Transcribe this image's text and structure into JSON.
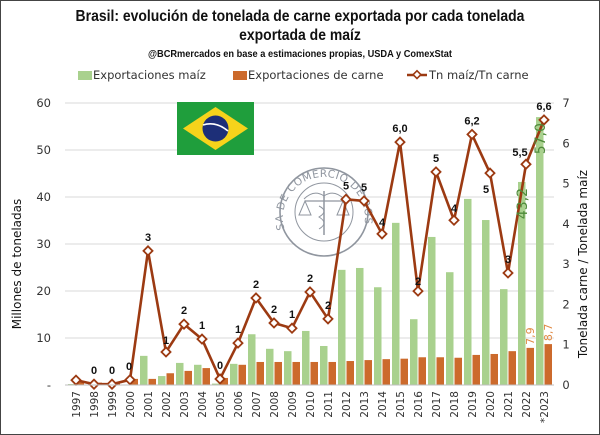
{
  "chart_data": {
    "type": "bar",
    "title": "Brasil: evolución de tonelada de carne exportada por cada tonelada exportada de maíz",
    "title_line1": "Brasil: evolución de tonelada de carne exportada por cada tonelada",
    "title_line2": "exportada de maíz",
    "subtitle": "@BCRmercados en base a estimaciones propias, USDA y ComexStat",
    "ylabel_left": "Millones de toneladas",
    "ylabel_right": "Tonelada carne / Tonelada maíz",
    "ylim_left": [
      0,
      60
    ],
    "ylim_right": [
      0,
      7
    ],
    "yticks_left": [
      "-",
      "10",
      "20",
      "30",
      "40",
      "50",
      "60"
    ],
    "yticks_right": [
      "0",
      "1",
      "2",
      "3",
      "4",
      "5",
      "6",
      "7"
    ],
    "grid": true,
    "legend_position": "top",
    "categories": [
      "1997",
      "1998",
      "1999",
      "2000",
      "2001",
      "2002",
      "2003",
      "2004",
      "2005",
      "2006",
      "2007",
      "2008",
      "2009",
      "2010",
      "2011",
      "2012",
      "2013",
      "2014",
      "2015",
      "2016",
      "2017",
      "2018",
      "2019",
      "2020",
      "2021",
      "2022",
      "*2023"
    ],
    "series": [
      {
        "name": "Exportaciones maíz",
        "type": "bar",
        "axis": "left",
        "color": "#a9d18e",
        "values": [
          0.2,
          0.1,
          0.1,
          0.1,
          6.2,
          1.9,
          4.7,
          4.3,
          0.3,
          4.5,
          10.8,
          7.7,
          7.2,
          11.5,
          8.3,
          24.5,
          24.9,
          20.8,
          34.5,
          14.0,
          31.5,
          24.0,
          39.6,
          35.1,
          20.4,
          43.2,
          57.0
        ],
        "data_labels": {
          "25": "43,2",
          "26": "57,0"
        }
      },
      {
        "name": "Exportaciones de carne",
        "type": "bar",
        "axis": "left",
        "color": "#cc6a2c",
        "values": [
          0.6,
          0.5,
          0.5,
          1.3,
          1.3,
          2.5,
          3.0,
          3.6,
          1.5,
          4.3,
          4.9,
          4.9,
          4.9,
          4.9,
          4.9,
          5.1,
          5.3,
          5.5,
          5.6,
          5.9,
          5.9,
          5.8,
          6.4,
          6.6,
          7.2,
          7.9,
          8.7
        ],
        "data_labels": {
          "25": "7,9",
          "26": "8,7"
        }
      },
      {
        "name": "Tn maíz/Tn carne",
        "type": "line",
        "axis": "right",
        "color": "#9c3a12",
        "values": [
          0.12,
          0.02,
          0.02,
          0.13,
          3.33,
          0.82,
          1.51,
          1.14,
          0.15,
          1.04,
          2.16,
          1.54,
          1.41,
          2.31,
          1.64,
          4.61,
          4.57,
          3.75,
          6.03,
          2.33,
          5.29,
          4.09,
          6.22,
          5.26,
          2.78,
          5.48,
          6.58
        ],
        "data_labels": [
          "",
          "0",
          "0",
          "0",
          "3",
          "1",
          "2",
          "1",
          "0",
          "1",
          "2",
          "2",
          "1",
          "2",
          "2",
          "5",
          "5",
          "4",
          "6,0",
          "2",
          "5",
          "4",
          "6,2",
          "5",
          "3",
          "5,5",
          "6,6"
        ]
      }
    ]
  },
  "decorations": {
    "flag": "brazil-flag",
    "watermark": "BOLSA DE COMERCIO DE ROSARIO"
  }
}
